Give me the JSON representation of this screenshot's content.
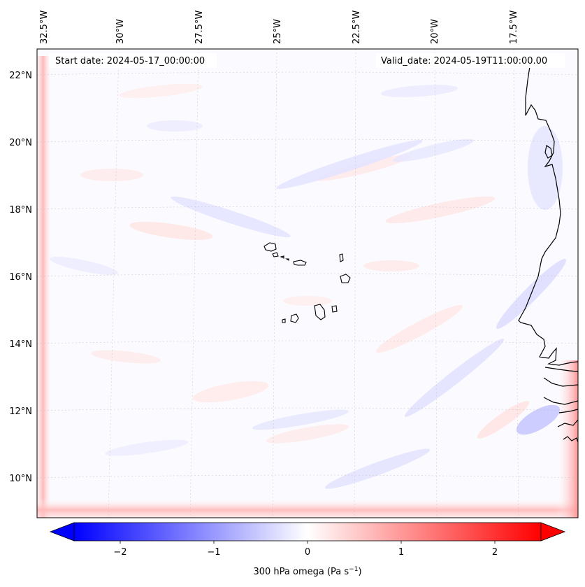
{
  "map": {
    "start_label": "Start date: 2024-05-17_00:00:00",
    "valid_label": "Valid_date: 2024-05-19T11:00:00.00",
    "lon_labels": [
      "32.5°W",
      "30°W",
      "27.5°W",
      "25°W",
      "22.5°W",
      "20°W",
      "17.5°W"
    ],
    "lat_labels": [
      "22°N",
      "20°N",
      "18°N",
      "16°N",
      "14°N",
      "12°N",
      "10°N"
    ]
  },
  "colorbar": {
    "ticks": [
      "−2",
      "−1",
      "0",
      "1",
      "2"
    ],
    "label": "300 hPa omega (Pa s",
    "label_sup": "−1",
    "label_close": ")",
    "min": -2.6,
    "max": 2.6,
    "colors": {
      "negative": "#0000ff",
      "zero": "#ffffff",
      "positive": "#ff0000"
    }
  }
}
